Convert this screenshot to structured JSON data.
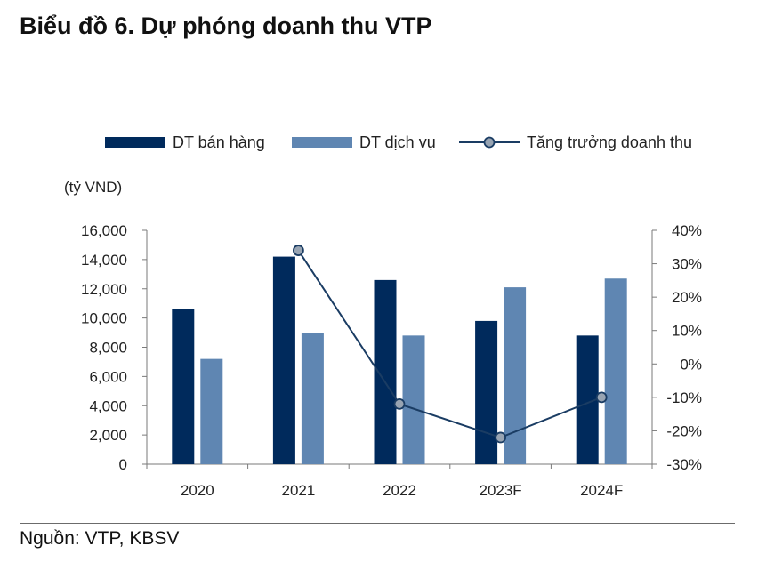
{
  "header": {
    "title": "Biểu đồ 6. Dự phóng doanh thu VTP"
  },
  "footer": {
    "source": "Nguồn: VTP, KBSV"
  },
  "colors": {
    "sales": "#002a5c",
    "services": "#5f86b2",
    "growth_line": "#1a3c63",
    "growth_marker": "#98a4b2"
  },
  "chart_data": {
    "type": "bar",
    "title": "",
    "unit_label": "(tỷ VND)",
    "categories": [
      "2020",
      "2021",
      "2022",
      "2023F",
      "2024F"
    ],
    "series": [
      {
        "name": "DT bán hàng",
        "type": "bar",
        "axis": "left",
        "values": [
          10600,
          14200,
          12600,
          9800,
          8800
        ]
      },
      {
        "name": "DT dịch vụ",
        "type": "bar",
        "axis": "left",
        "values": [
          7200,
          9000,
          8800,
          12100,
          12700
        ]
      },
      {
        "name": "Tăng trưởng doanh thu",
        "type": "line",
        "axis": "right",
        "values": [
          null,
          34,
          -12,
          -22,
          -10
        ]
      }
    ],
    "y_left": {
      "min": 0,
      "max": 16000,
      "ticks": [
        "0",
        "2,000",
        "4,000",
        "6,000",
        "8,000",
        "10,000",
        "12,000",
        "14,000",
        "16,000"
      ]
    },
    "y_right": {
      "min": -30,
      "max": 40,
      "ticks": [
        "-30%",
        "-20%",
        "-10%",
        "0%",
        "10%",
        "20%",
        "30%",
        "40%"
      ]
    },
    "legend_position": "top",
    "grid": false
  }
}
